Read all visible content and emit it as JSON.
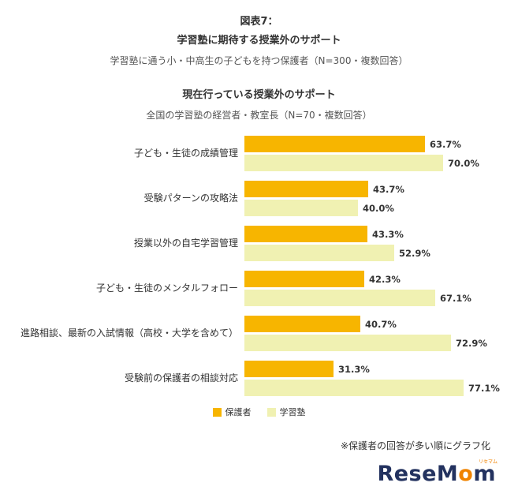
{
  "header": {
    "figure_label": "図表7：",
    "figure_title": "学習塾に期待する授業外のサポート",
    "figure_subtitle": "学習塾に通う小・中高生の子どもを持つ保護者（N=300・複数回答）",
    "section_title": "現在行っている授業外のサポート",
    "section_subtitle": "全国の学習塾の経営者・教室長（N=70・複数回答）"
  },
  "chart_data": {
    "type": "bar",
    "orientation": "horizontal",
    "title": "図表7：学習塾に期待する授業外のサポート",
    "categories": [
      "子ども・生徒の成績管理",
      "受験パターンの攻略法",
      "授業以外の自宅学習管理",
      "子ども・生徒のメンタルフォロー",
      "進路相談、最新の入試情報（高校・大学を含めて）",
      "受験前の保護者の相談対応"
    ],
    "series": [
      {
        "name": "保護者",
        "color": "#F7B500",
        "values": [
          63.7,
          43.7,
          43.3,
          42.3,
          40.7,
          31.3
        ]
      },
      {
        "name": "学習塾",
        "color": "#F0F1B2",
        "values": [
          70.0,
          40.0,
          52.9,
          67.1,
          72.9,
          77.1
        ]
      }
    ],
    "value_suffix": "%",
    "xlim": [
      0,
      80
    ],
    "grid": false,
    "legend_position": "bottom",
    "sort_note": "保護者の回答が多い順"
  },
  "footnote": "※保護者の回答が多い順にグラフ化",
  "logo": {
    "part1": "ReseM",
    "accent": "o",
    "part2": "m",
    "ruby": "リセマム"
  }
}
